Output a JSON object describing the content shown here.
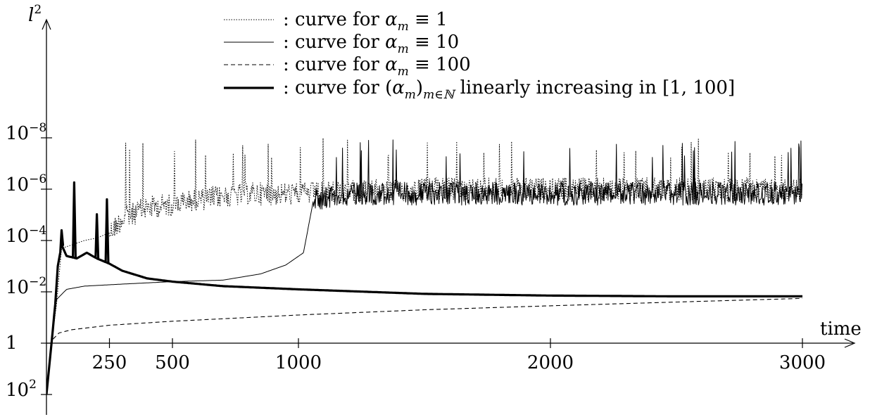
{
  "chart_data": {
    "type": "line",
    "xlabel": "time",
    "ylabel": {
      "base": "l",
      "sup": "2"
    },
    "x_ticks": [
      250,
      500,
      1000,
      2000,
      3000
    ],
    "x_range": [
      0,
      3300
    ],
    "y_scale": "log (inverted: higher on the plot = smaller l² error)",
    "y_ticks": [
      {
        "value": 100,
        "label_base": "10",
        "label_sup": "2"
      },
      {
        "value": 1,
        "label_base": "1",
        "label_sup": ""
      },
      {
        "value": 0.01,
        "label_base": "10",
        "label_sup": "−2"
      },
      {
        "value": 0.0001,
        "label_base": "10",
        "label_sup": "−4"
      },
      {
        "value": 1e-06,
        "label_base": "10",
        "label_sup": "−6"
      },
      {
        "value": 1e-08,
        "label_base": "10",
        "label_sup": "−8"
      }
    ],
    "grid": false,
    "legend_position": "top-center",
    "series": [
      {
        "name": ": curve for αm ≡ 1",
        "legend": {
          "prefix": ": curve for ",
          "alpha": "α",
          "sub": "m",
          "rest": " ≡ 1"
        },
        "style": "dotted",
        "points": [
          [
            0,
            100
          ],
          [
            20,
            1
          ],
          [
            40,
            0.03
          ],
          [
            60,
            0.0002
          ],
          [
            100,
            0.00015
          ],
          [
            150,
            0.0001
          ],
          [
            200,
            8e-05
          ],
          [
            250,
            5e-05
          ],
          [
            300,
            1.5e-05
          ],
          [
            400,
            5e-06
          ],
          [
            500,
            4e-06
          ],
          [
            600,
            2.5e-06
          ],
          [
            800,
            1.5e-06
          ],
          [
            1000,
            1.5e-06
          ],
          [
            1500,
            1e-06
          ],
          [
            2000,
            1e-06
          ],
          [
            2500,
            1e-06
          ],
          [
            3000,
            1e-06
          ]
        ],
        "noise_start": 250,
        "noise_amp_decades": 0.45,
        "spikes_to": 1e-08
      },
      {
        "name": ": curve for αm ≡ 10",
        "legend": {
          "prefix": ": curve for ",
          "alpha": "α",
          "sub": "m",
          "rest": " ≡ 10"
        },
        "style": "solid-thin",
        "points": [
          [
            0,
            100
          ],
          [
            20,
            1
          ],
          [
            40,
            0.02
          ],
          [
            80,
            0.008
          ],
          [
            150,
            0.006
          ],
          [
            300,
            0.005
          ],
          [
            500,
            0.004
          ],
          [
            700,
            0.0035
          ],
          [
            850,
            0.002
          ],
          [
            950,
            0.0009
          ],
          [
            1020,
            0.0003
          ],
          [
            1060,
            2.5e-06
          ],
          [
            1200,
            1.5e-06
          ],
          [
            1600,
            1.5e-06
          ],
          [
            2000,
            1.5e-06
          ],
          [
            2500,
            1.5e-06
          ],
          [
            3000,
            1.5e-06
          ]
        ],
        "noise_start": 1060,
        "noise_amp_decades": 0.45,
        "spikes_to": 1e-08
      },
      {
        "name": ": curve for αm ≡ 100",
        "legend": {
          "prefix": ": curve for ",
          "alpha": "α",
          "sub": "m",
          "rest": " ≡ 100"
        },
        "style": "dashed",
        "points": [
          [
            0,
            100
          ],
          [
            20,
            0.8
          ],
          [
            50,
            0.4
          ],
          [
            100,
            0.3
          ],
          [
            250,
            0.2
          ],
          [
            500,
            0.14
          ],
          [
            1000,
            0.08
          ],
          [
            1500,
            0.05
          ],
          [
            2000,
            0.035
          ],
          [
            2500,
            0.025
          ],
          [
            3000,
            0.018
          ]
        ],
        "noise_start": 0,
        "noise_amp_decades": 0
      },
      {
        "name": ": curve for (αm)m∈ℕ linearly increasing in [1, 100]",
        "legend": {
          "prefix": ": curve for (",
          "alpha": "α",
          "sub": "m",
          "rest": ")",
          "sub2": "m∈ℕ",
          "rest2": " linearly increasing in [1, 100]"
        },
        "style": "solid-thick",
        "points": [
          [
            0,
            100
          ],
          [
            20,
            1
          ],
          [
            35,
            0.03
          ],
          [
            45,
            0.001
          ],
          [
            60,
            0.00015
          ],
          [
            80,
            0.0004
          ],
          [
            120,
            0.0005
          ],
          [
            160,
            0.0003
          ],
          [
            200,
            0.0005
          ],
          [
            250,
            0.0008
          ],
          [
            300,
            0.0015
          ],
          [
            400,
            0.003
          ],
          [
            500,
            0.004
          ],
          [
            700,
            0.006
          ],
          [
            1000,
            0.008
          ],
          [
            1500,
            0.012
          ],
          [
            2000,
            0.014
          ],
          [
            2500,
            0.015
          ],
          [
            3000,
            0.015
          ]
        ],
        "spikes": [
          [
            60,
            4e-05
          ],
          [
            110,
            5.5e-07
          ],
          [
            200,
            9.5e-06
          ],
          [
            240,
            2.5e-06
          ]
        ],
        "noise_start": 0,
        "noise_amp_decades": 0
      }
    ]
  }
}
